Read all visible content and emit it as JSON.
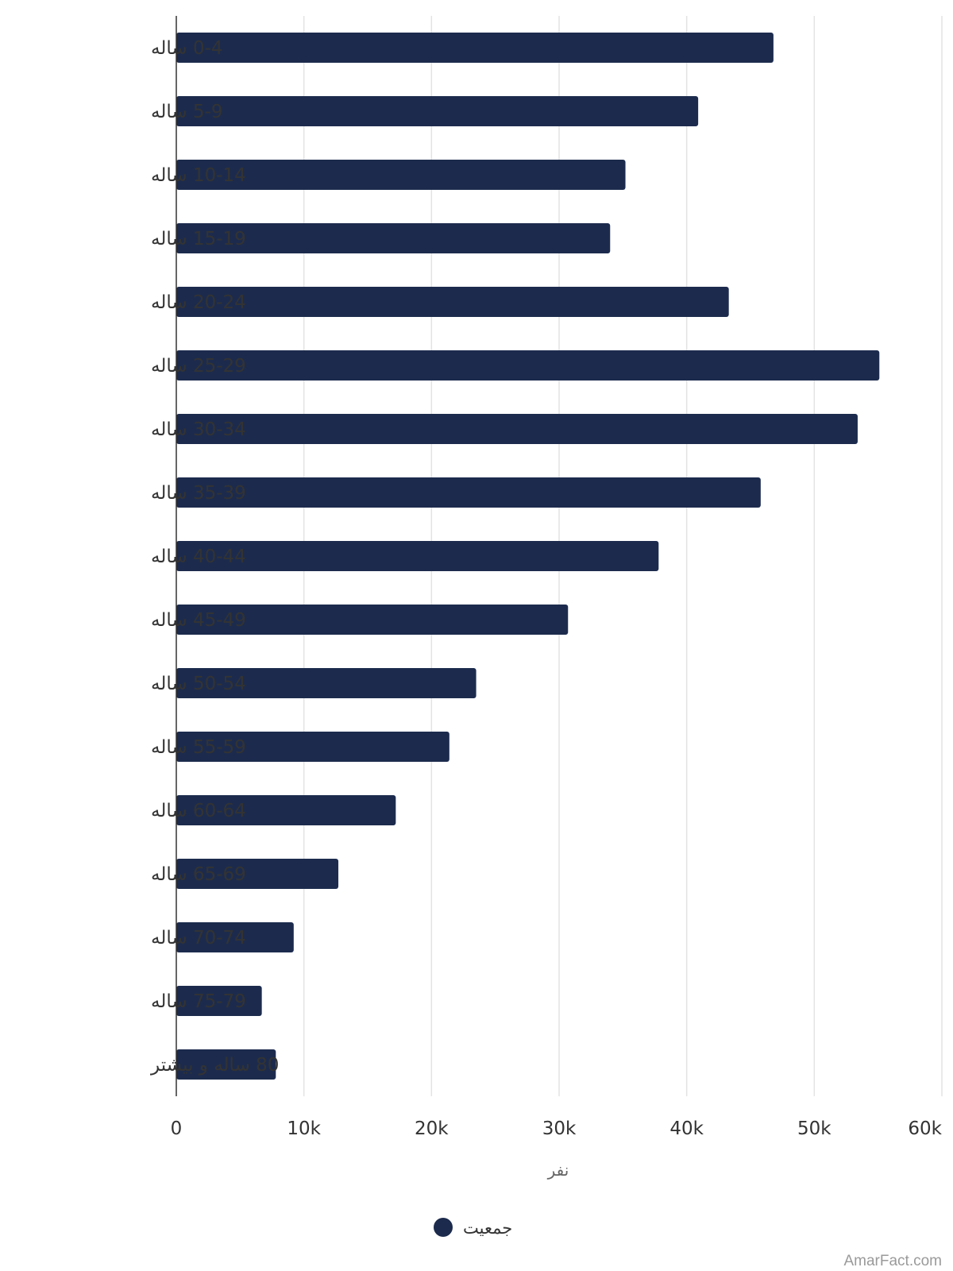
{
  "chart_data": {
    "type": "bar",
    "orientation": "horizontal",
    "categories": [
      "0-4 ساله",
      "5-9 ساله",
      "10-14 ساله",
      "15-19 ساله",
      "20-24 ساله",
      "25-29 ساله",
      "30-34 ساله",
      "35-39 ساله",
      "40-44 ساله",
      "45-49 ساله",
      "50-54 ساله",
      "55-59 ساله",
      "60-64 ساله",
      "65-69 ساله",
      "70-74 ساله",
      "75-79 ساله",
      "80 ساله و بیشتر"
    ],
    "series": [
      {
        "name": "جمعیت",
        "color": "#1c2b4d",
        "values": [
          46800,
          40900,
          35200,
          34000,
          43300,
          55100,
          53400,
          45800,
          37800,
          30700,
          23500,
          21400,
          17200,
          12700,
          9200,
          6700,
          7800
        ]
      }
    ],
    "xlabel": "نفر",
    "xlim": [
      0,
      60000
    ],
    "xticks": [
      "0",
      "10k",
      "20k",
      "30k",
      "40k",
      "50k",
      "60k"
    ],
    "grid": true,
    "legend_position": "bottom-center"
  },
  "watermark": "AmarFact.com"
}
